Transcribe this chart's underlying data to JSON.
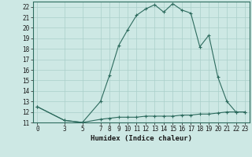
{
  "xlabel": "Humidex (Indice chaleur)",
  "x_values": [
    0,
    3,
    5,
    7,
    8,
    9,
    10,
    11,
    12,
    13,
    14,
    15,
    16,
    17,
    18,
    19,
    20,
    21,
    22,
    23
  ],
  "y_values": [
    12.5,
    11.2,
    11.0,
    13.0,
    15.5,
    18.3,
    19.8,
    21.2,
    21.8,
    22.2,
    21.5,
    22.3,
    21.7,
    21.4,
    18.2,
    19.3,
    15.3,
    13.0,
    12.0,
    12.0
  ],
  "y2_values": [
    12.5,
    11.2,
    11.0,
    11.3,
    11.4,
    11.5,
    11.5,
    11.5,
    11.6,
    11.6,
    11.6,
    11.6,
    11.7,
    11.7,
    11.8,
    11.8,
    11.9,
    12.0,
    12.0,
    12.0
  ],
  "line_color": "#2d6b5e",
  "bg_color": "#cde8e4",
  "grid_color": "#aacfca",
  "ylim": [
    11,
    22.5
  ],
  "yticks": [
    11,
    12,
    13,
    14,
    15,
    16,
    17,
    18,
    19,
    20,
    21,
    22
  ],
  "xticks": [
    0,
    3,
    5,
    7,
    8,
    9,
    10,
    11,
    12,
    13,
    14,
    15,
    16,
    17,
    18,
    19,
    20,
    21,
    22,
    23
  ],
  "xlim": [
    -0.5,
    23.5
  ]
}
